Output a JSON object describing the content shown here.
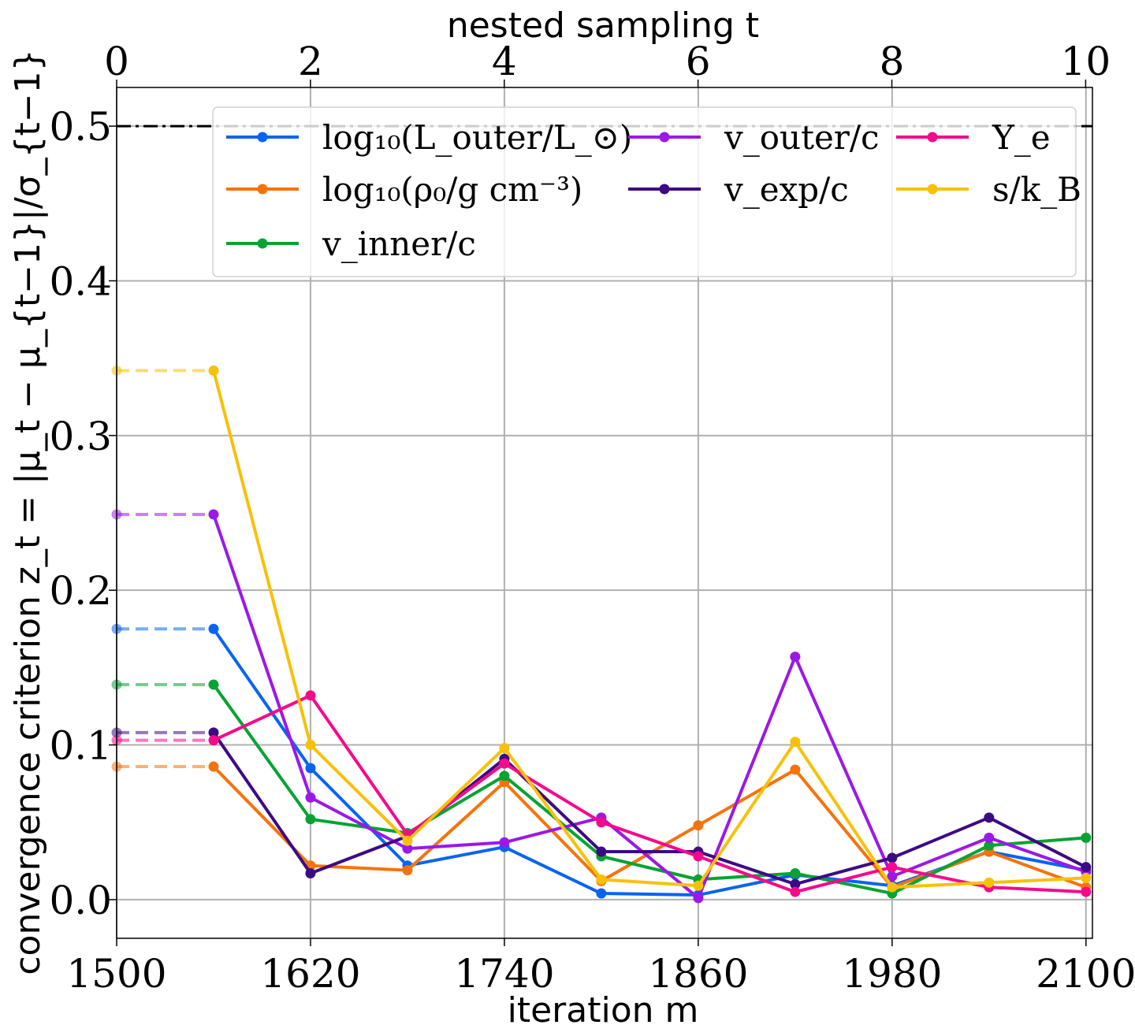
{
  "chart_data": {
    "type": "line",
    "xlabel": "iteration m",
    "x2label": "nested sampling t",
    "ylabel": "convergence criterion z_t = |μ_t − μ_{t−1}|/σ_{t−1}",
    "xlim": [
      1500,
      2104
    ],
    "ylim": [
      -0.025,
      0.525
    ],
    "x2lim": [
      0,
      10.07
    ],
    "x_ticks": [
      "1500",
      "1620",
      "1740",
      "1860",
      "1980",
      "2100"
    ],
    "x2_ticks": [
      "0",
      "2",
      "4",
      "6",
      "8",
      "10"
    ],
    "y_ticks": [
      "0.0",
      "0.1",
      "0.2",
      "0.3",
      "0.4",
      "0.5"
    ],
    "grid": true,
    "threshold": {
      "y": 0.5,
      "style": "dash-dot",
      "color": "#000000"
    },
    "legend": {
      "placement": "top-right",
      "columns": 3
    },
    "x": [
      1560,
      1620,
      1680,
      1740,
      1800,
      1860,
      1920,
      1980,
      2040,
      2100
    ],
    "series": [
      {
        "name": "log₁₀(L_outer/L_⊙)",
        "color": "#0a64f0",
        "initial": 0.175,
        "values": [
          0.175,
          0.085,
          0.022,
          0.034,
          0.004,
          0.003,
          0.016,
          0.009,
          0.031,
          0.019
        ]
      },
      {
        "name": "log₁₀(ρ₀/g cm⁻³)",
        "color": "#f5730c",
        "initial": 0.086,
        "values": [
          0.086,
          0.022,
          0.019,
          0.076,
          0.012,
          0.048,
          0.084,
          0.008,
          0.031,
          0.008
        ]
      },
      {
        "name": "v_inner/c",
        "color": "#08a332",
        "initial": 0.139,
        "values": [
          0.139,
          0.052,
          0.043,
          0.08,
          0.028,
          0.013,
          0.017,
          0.004,
          0.035,
          0.04
        ]
      },
      {
        "name": "v_outer/c",
        "color": "#9b19e6",
        "initial": 0.249,
        "values": [
          0.249,
          0.066,
          0.033,
          0.037,
          0.053,
          0.001,
          0.157,
          0.015,
          0.04,
          0.018
        ]
      },
      {
        "name": "v_exp/c",
        "color": "#3d0a85",
        "initial": 0.108,
        "values": [
          0.108,
          0.017,
          0.041,
          0.091,
          0.031,
          0.031,
          0.01,
          0.027,
          0.053,
          0.021
        ]
      },
      {
        "name": "Y_e",
        "color": "#f50a8c",
        "initial": 0.103,
        "values": [
          0.103,
          0.132,
          0.042,
          0.088,
          0.05,
          0.028,
          0.005,
          0.021,
          0.008,
          0.005
        ]
      },
      {
        "name": "s/k_B",
        "color": "#f7c10a",
        "initial": 0.342,
        "values": [
          0.342,
          0.1,
          0.038,
          0.098,
          0.013,
          0.009,
          0.102,
          0.008,
          0.011,
          0.014
        ]
      }
    ]
  }
}
